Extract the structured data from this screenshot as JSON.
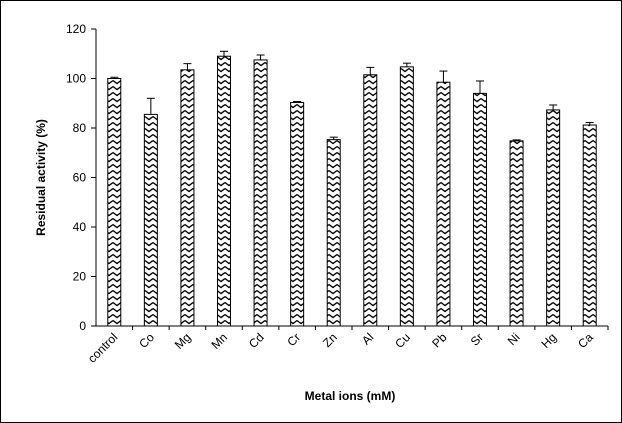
{
  "chart_data": {
    "type": "bar",
    "title": "",
    "xlabel": "Metal ions (mM)",
    "ylabel": "Residual activity (%)",
    "ylim": [
      0,
      120
    ],
    "yticks": [
      0,
      20,
      40,
      60,
      80,
      100,
      120
    ],
    "grid": false,
    "legend": "none",
    "categories": [
      "control",
      "Co",
      "Mg",
      "Mn",
      "Cd",
      "Cr",
      "Zn",
      "Al",
      "Cu",
      "Pb",
      "Sr",
      "Ni",
      "Hg",
      "Ca"
    ],
    "values": [
      100,
      85.5,
      103.5,
      109,
      107.5,
      90.3,
      75.3,
      101.5,
      104.7,
      98.5,
      94,
      74.8,
      87.3,
      81.2
    ],
    "errors": [
      0.5,
      6.5,
      2.5,
      2,
      2,
      0.4,
      1,
      3,
      1.5,
      4.5,
      5,
      0.4,
      2,
      1
    ],
    "bar_pattern": "zigzag-hatch",
    "colors": {
      "bar_fill": "#ffffff",
      "hatch": "#000000",
      "axis": "#000000"
    }
  }
}
